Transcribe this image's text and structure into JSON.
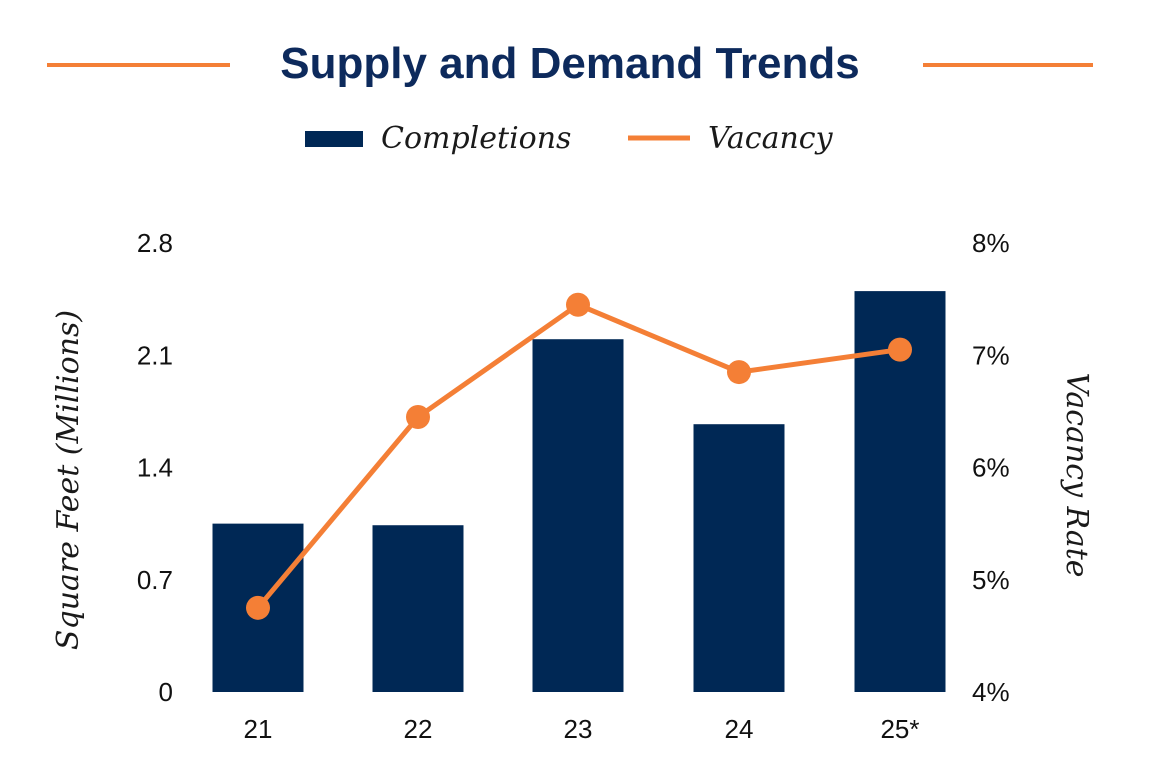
{
  "chart_data": {
    "type": "bar",
    "title": "Supply and Demand Trends",
    "categories": [
      "21",
      "22",
      "23",
      "24",
      "25*"
    ],
    "series": [
      {
        "name": "Completions",
        "type": "bar",
        "axis": "left",
        "color": "#002855",
        "values": [
          1.05,
          1.04,
          2.2,
          1.67,
          2.5
        ]
      },
      {
        "name": "Vacancy",
        "type": "line",
        "axis": "right",
        "color": "#f47f36",
        "values": [
          4.75,
          6.45,
          7.45,
          6.85,
          7.05
        ]
      }
    ],
    "y_left": {
      "label": "Square Feet (Millions)",
      "ticks": [
        "0",
        "0.7",
        "1.4",
        "2.1",
        "2.8"
      ],
      "lim": [
        0,
        2.8
      ]
    },
    "y_right": {
      "label": "Vacancy Rate",
      "ticks": [
        "4%",
        "5%",
        "6%",
        "7%",
        "8%"
      ],
      "lim": [
        4,
        8
      ]
    },
    "legend_position": "top-center",
    "grid": false
  }
}
